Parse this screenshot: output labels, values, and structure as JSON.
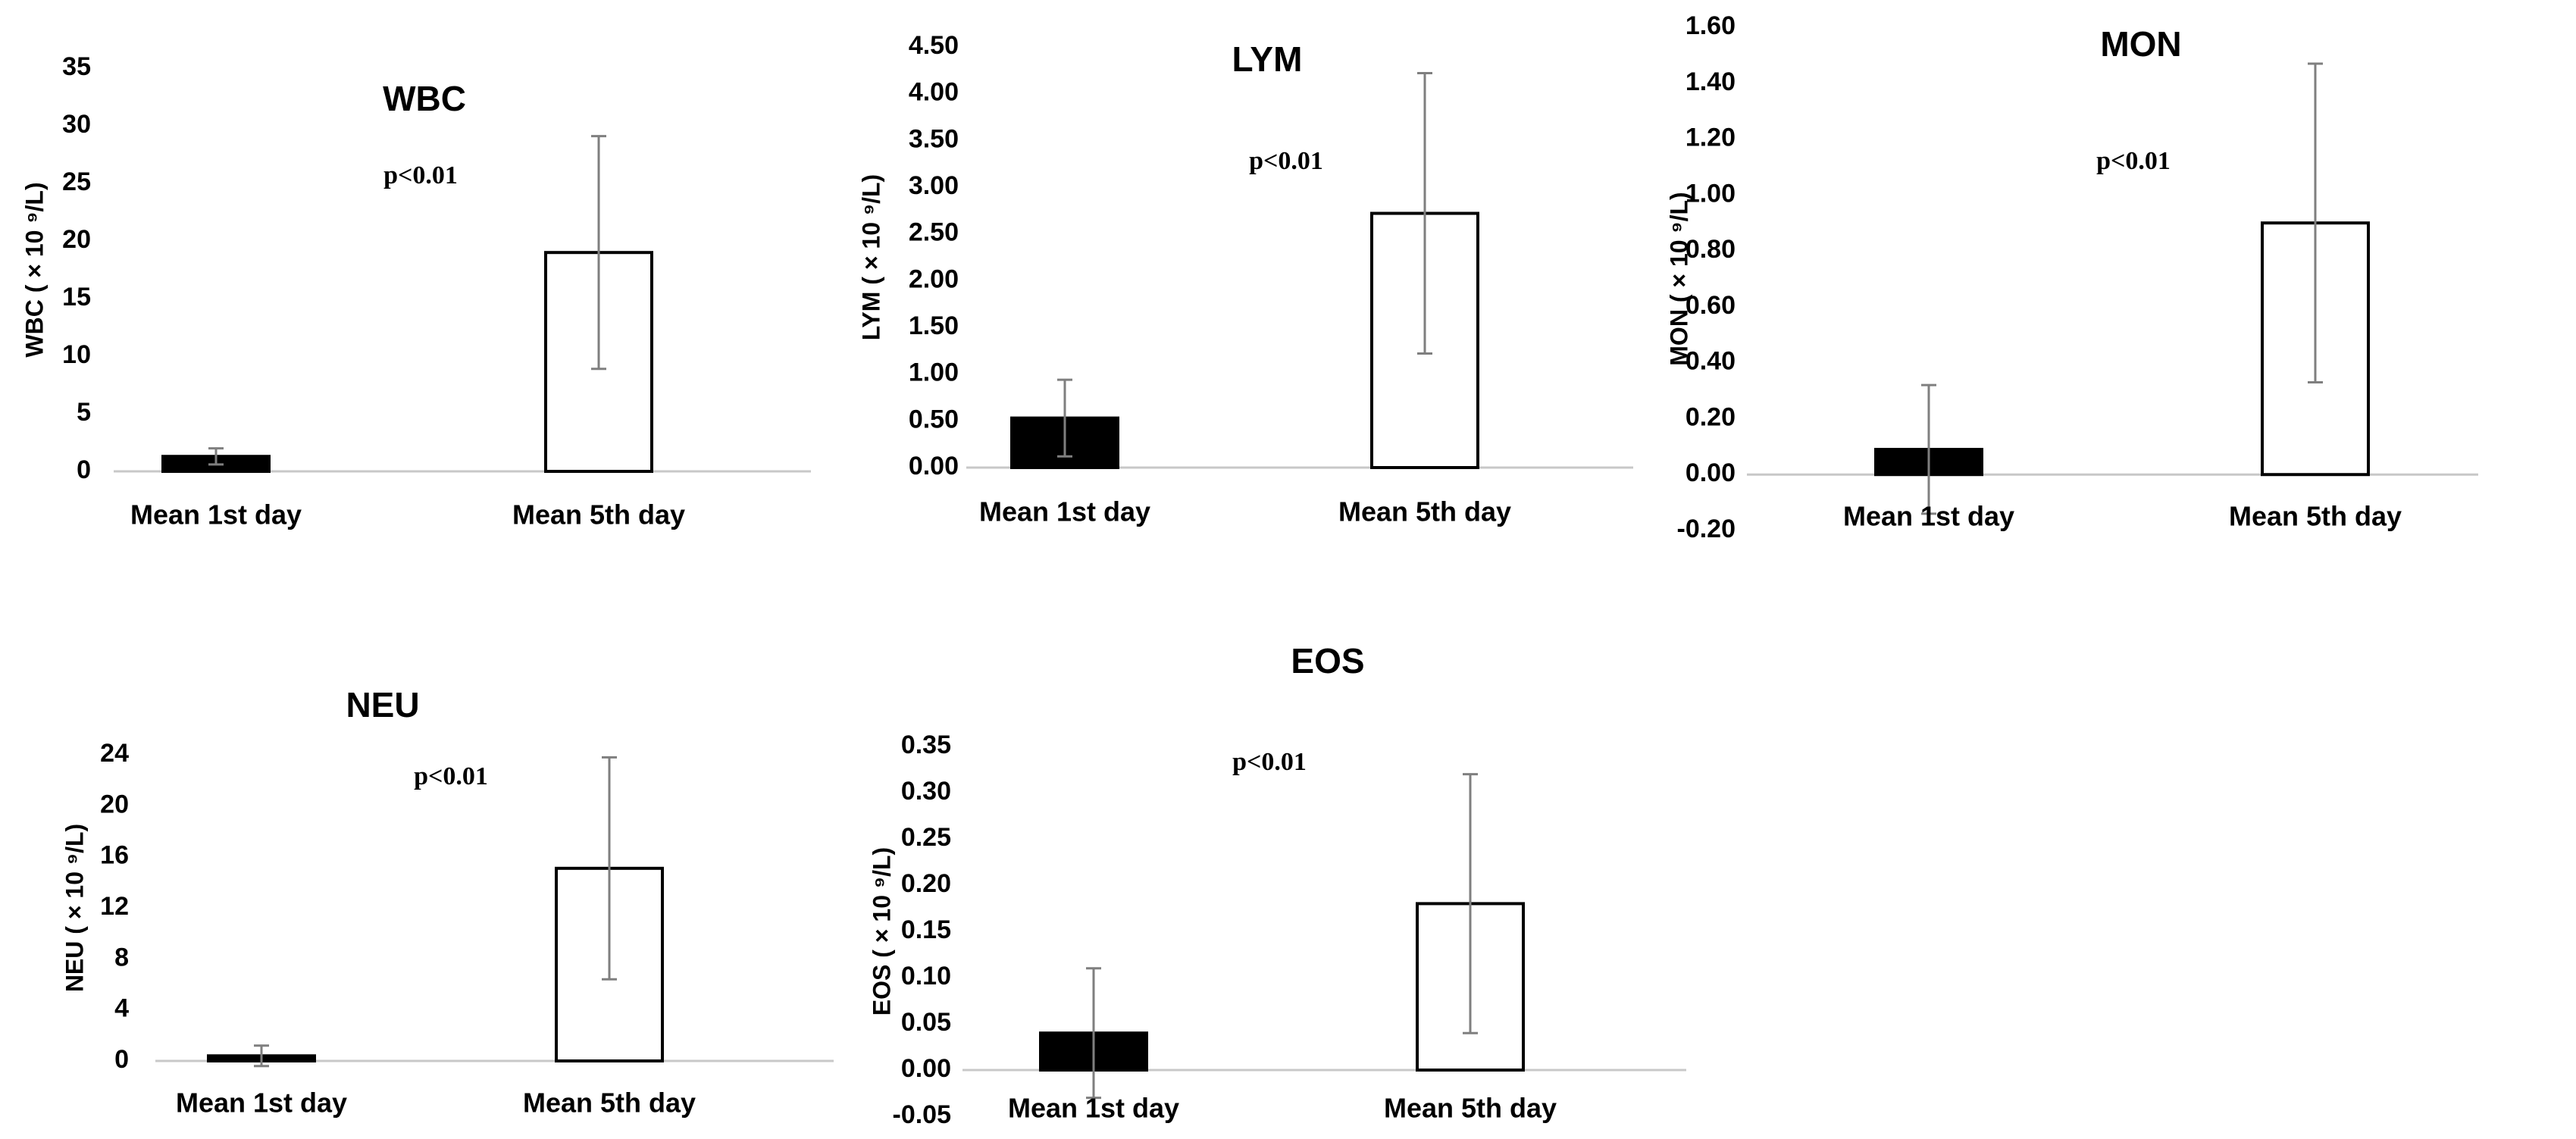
{
  "chart_data": [
    {
      "type": "bar",
      "title": "WBC",
      "ylabel": "WBC ( × 10 ⁹/L)",
      "annotation": "p<0.01",
      "categories": [
        "Mean 1st day",
        "Mean 5th day"
      ],
      "values": [
        1.3,
        19.0
      ],
      "error": [
        0.7,
        10.1
      ],
      "fills": [
        "#000000",
        "#ffffff"
      ],
      "ylim": [
        0,
        35
      ],
      "ticks": [
        0,
        5,
        10,
        15,
        20,
        25,
        30,
        35
      ],
      "tick_labels": [
        "0",
        "5",
        "10",
        "15",
        "20",
        "25",
        "30",
        "35"
      ],
      "grid": false,
      "legend": "none"
    },
    {
      "type": "bar",
      "title": "LYM",
      "ylabel": "LYM ( × 10 ⁹/L)",
      "annotation": "p<0.01",
      "categories": [
        "Mean 1st day",
        "Mean 5th day"
      ],
      "values": [
        0.53,
        2.72
      ],
      "error": [
        0.41,
        1.5
      ],
      "fills": [
        "#000000",
        "#ffffff"
      ],
      "ylim": [
        0,
        4.5
      ],
      "ticks": [
        0,
        0.5,
        1,
        1.5,
        2,
        2.5,
        3,
        3.5,
        4,
        4.5
      ],
      "tick_labels": [
        "0.00",
        "0.50",
        "1.00",
        "1.50",
        "2.00",
        "2.50",
        "3.00",
        "3.50",
        "4.00",
        "4.50"
      ],
      "grid": false,
      "legend": "none"
    },
    {
      "type": "bar",
      "title": "MON",
      "ylabel": "MON ( × 10 ⁹/L)",
      "annotation": "p<0.01",
      "categories": [
        "Mean 1st day",
        "Mean 5th day"
      ],
      "values": [
        0.09,
        0.9
      ],
      "error": [
        0.23,
        0.57
      ],
      "fills": [
        "#000000",
        "#ffffff"
      ],
      "ylim": [
        -0.2,
        1.6
      ],
      "ticks": [
        -0.2,
        0,
        0.2,
        0.4,
        0.6,
        0.8,
        1,
        1.2,
        1.4,
        1.6
      ],
      "tick_labels": [
        "-0.20",
        "0.00",
        "0.20",
        "0.40",
        "0.60",
        "0.80",
        "1.00",
        "1.20",
        "1.40",
        "1.60"
      ],
      "grid": false,
      "legend": "none"
    },
    {
      "type": "bar",
      "title": "NEU",
      "ylabel": "NEU ( × 10 ⁹/L)",
      "annotation": "p<0.01",
      "categories": [
        "Mean 1st day",
        "Mean 5th day"
      ],
      "values": [
        0.4,
        15.1
      ],
      "error": [
        0.8,
        8.7
      ],
      "fills": [
        "#000000",
        "#ffffff"
      ],
      "ylim": [
        0,
        24
      ],
      "ticks": [
        0,
        4,
        8,
        12,
        16,
        20,
        24
      ],
      "tick_labels": [
        "0",
        "4",
        "8",
        "12",
        "16",
        "20",
        "24"
      ],
      "grid": false,
      "legend": "none"
    },
    {
      "type": "bar",
      "title": "EOS",
      "ylabel": "EOS ( × 10 ⁹/L)",
      "annotation": "p<0.01",
      "categories": [
        "Mean 1st day",
        "Mean 5th day"
      ],
      "values": [
        0.04,
        0.18
      ],
      "error": [
        0.07,
        0.14
      ],
      "fills": [
        "#000000",
        "#ffffff"
      ],
      "ylim": [
        -0.05,
        0.35
      ],
      "ticks": [
        -0.05,
        0,
        0.05,
        0.1,
        0.15,
        0.2,
        0.25,
        0.3,
        0.35
      ],
      "tick_labels": [
        "-0.05",
        "0.00",
        "0.05",
        "0.10",
        "0.15",
        "0.20",
        "0.25",
        "0.30",
        "0.35"
      ],
      "grid": false,
      "legend": "none"
    }
  ]
}
